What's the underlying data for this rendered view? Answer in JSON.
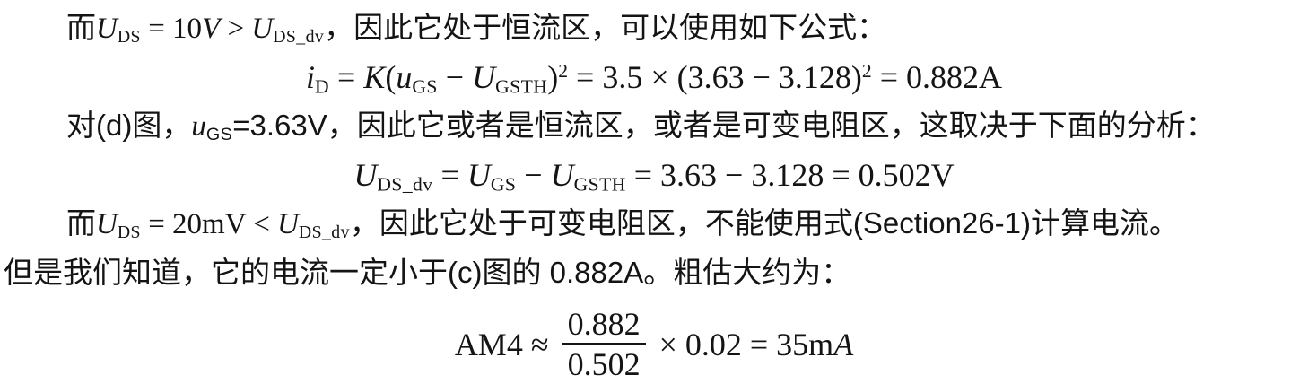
{
  "page": {
    "background": "#ffffff",
    "text_color": "#141414"
  },
  "content": {
    "p1": {
      "cn_start": "而",
      "v1": "U",
      "v1sub": "DS",
      "m1": " = 10",
      "v2": "V",
      "m2": " > ",
      "v3": "U",
      "v3sub": "DS_dv",
      "cn_end": "，因此它处于恒流区，可以使用如下公式："
    },
    "f1": {
      "v1": "i",
      "v1sub": "D",
      "m1": " = ",
      "v2": "K",
      "m2": "(",
      "v3": "u",
      "v3sub": "GS",
      "m3": " − ",
      "v4": "U",
      "v4sub": "GSTH",
      "m4": ")",
      "sup1": "2",
      "m5": " = 3.5 × (3.63 − 3.128)",
      "sup2": "2",
      "m6": " = 0.882A"
    },
    "p2": {
      "cn_start": "对(d)图，",
      "v1": "u",
      "v1sub": "GS",
      "cn_end": "=3.63V，因此它或者是恒流区，或者是可变电阻区，这取决于下面的分析："
    },
    "f2": {
      "v1": "U",
      "v1sub": "DS_dv",
      "m1": " = ",
      "v2": "U",
      "v2sub": "GS",
      "m2": " − ",
      "v3": "U",
      "v3sub": "GSTH",
      "m3": " = 3.63 − 3.128 = 0.502V"
    },
    "p3": {
      "cn_start": "而",
      "v1": "U",
      "v1sub": "DS",
      "m1": " = 20mV < ",
      "v2": "U",
      "v2sub": "DS_dv",
      "cn_end": "，因此它处于可变电阻区，不能使用式(Section26-1)计算电流。"
    },
    "p4": {
      "cn": "但是我们知道，它的电流一定小于(c)图的 0.882A。粗估大约为："
    },
    "f3": {
      "m1": "AM4 ≈ ",
      "frac_num": "0.882",
      "frac_den": "0.502",
      "m2": " × 0.02 = 35m",
      "v1": "A"
    }
  }
}
